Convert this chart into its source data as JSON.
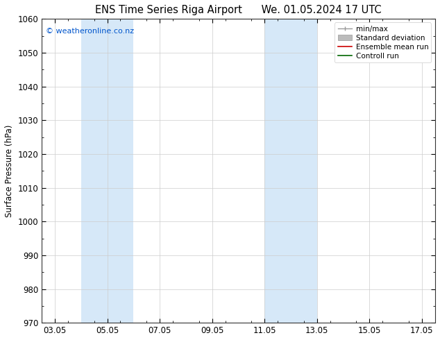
{
  "title_left": "ENS Time Series Riga Airport",
  "title_right": "We. 01.05.2024 17 UTC",
  "ylabel": "Surface Pressure (hPa)",
  "ylim": [
    970,
    1060
  ],
  "yticks": [
    970,
    980,
    990,
    1000,
    1010,
    1020,
    1030,
    1040,
    1050,
    1060
  ],
  "xtick_labels": [
    "03.05",
    "05.05",
    "07.05",
    "09.05",
    "11.05",
    "13.05",
    "15.05",
    "17.05"
  ],
  "xtick_positions": [
    3,
    5,
    7,
    9,
    11,
    13,
    15,
    17
  ],
  "xlim": [
    2.5,
    17.5
  ],
  "shaded_bands": [
    {
      "x_start": 4.0,
      "x_end": 6.0,
      "color": "#d6e8f8"
    },
    {
      "x_start": 11.0,
      "x_end": 13.0,
      "color": "#d6e8f8"
    }
  ],
  "watermark_text": "© weatheronline.co.nz",
  "watermark_color": "#0055cc",
  "legend_items": [
    {
      "label": "min/max",
      "color": "#999999",
      "type": "minmax"
    },
    {
      "label": "Standard deviation",
      "color": "#bbbbbb",
      "type": "band"
    },
    {
      "label": "Ensemble mean run",
      "color": "#cc0000",
      "type": "line"
    },
    {
      "label": "Controll run",
      "color": "#006600",
      "type": "line"
    }
  ],
  "background_color": "#ffffff",
  "plot_bg_color": "#ffffff",
  "grid_color": "#cccccc",
  "title_fontsize": 10.5,
  "tick_fontsize": 8.5,
  "ylabel_fontsize": 8.5,
  "legend_fontsize": 7.5,
  "watermark_fontsize": 8
}
